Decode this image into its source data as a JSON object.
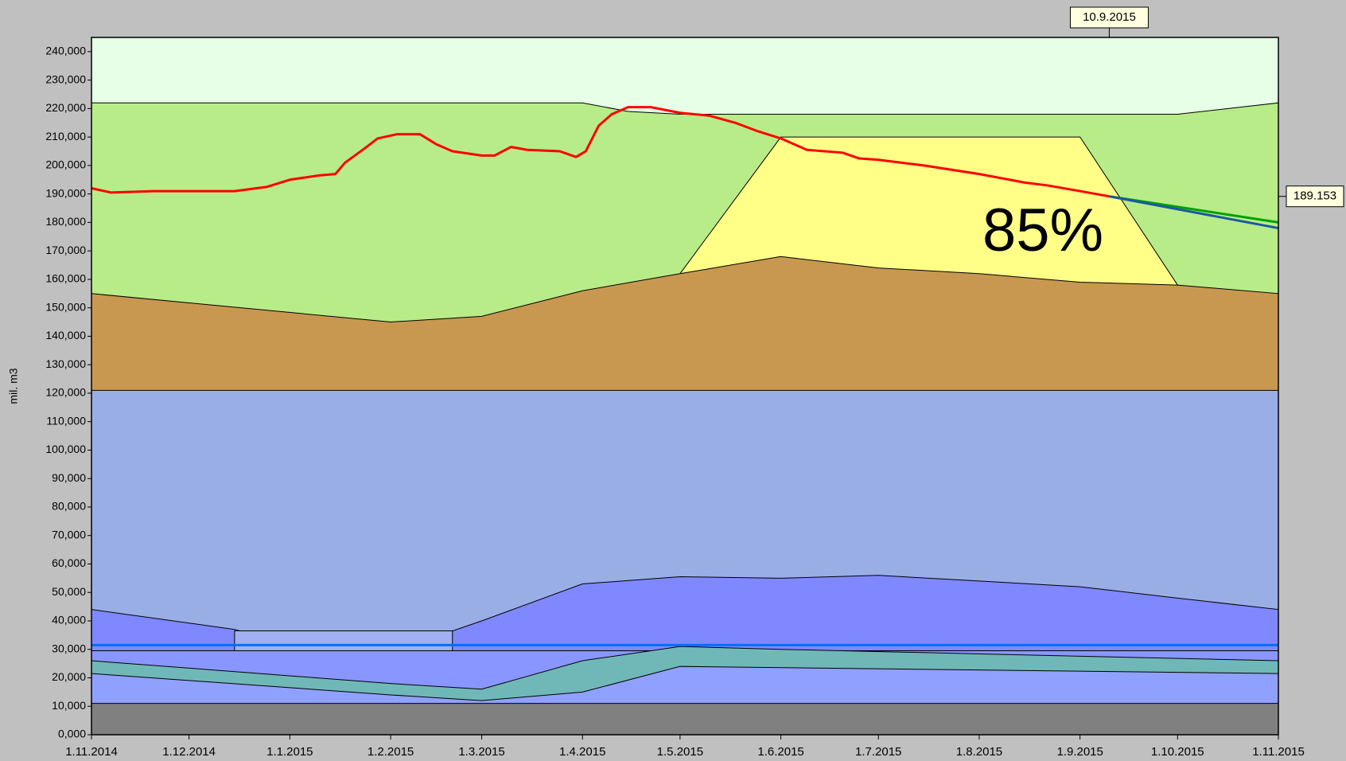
{
  "chart_data": {
    "type": "area",
    "ylabel": "mil. m3",
    "annotation": "85%",
    "plot_color": "#e6ffe6",
    "xlim": [
      "1.11.2014",
      "1.11.2015"
    ],
    "xticks": [
      "1.11.2014",
      "1.12.2014",
      "1.1.2015",
      "1.2.2015",
      "1.3.2015",
      "1.4.2015",
      "1.5.2015",
      "1.6.2015",
      "1.7.2015",
      "1.8.2015",
      "1.9.2015",
      "1.10.2015",
      "1.11.2015"
    ],
    "ylim": [
      0,
      245
    ],
    "yticks": [
      {
        "value": 0,
        "label": "0,000"
      },
      {
        "value": 10,
        "label": "10,000"
      },
      {
        "value": 20,
        "label": "20,000"
      },
      {
        "value": 30,
        "label": "30,000"
      },
      {
        "value": 40,
        "label": "40,000"
      },
      {
        "value": 50,
        "label": "50,000"
      },
      {
        "value": 60,
        "label": "60,000"
      },
      {
        "value": 70,
        "label": "70,000"
      },
      {
        "value": 80,
        "label": "80,000"
      },
      {
        "value": 90,
        "label": "90,000"
      },
      {
        "value": 100,
        "label": "100,000"
      },
      {
        "value": 110,
        "label": "110,000"
      },
      {
        "value": 120,
        "label": "120,000"
      },
      {
        "value": 130,
        "label": "130,000"
      },
      {
        "value": 140,
        "label": "140,000"
      },
      {
        "value": 150,
        "label": "150,000"
      },
      {
        "value": 160,
        "label": "160,000"
      },
      {
        "value": 170,
        "label": "170,000"
      },
      {
        "value": 180,
        "label": "180,000"
      },
      {
        "value": 190,
        "label": "190,000"
      },
      {
        "value": 200,
        "label": "200,000"
      },
      {
        "value": 210,
        "label": "210,000"
      },
      {
        "value": 220,
        "label": "220,000"
      },
      {
        "value": 230,
        "label": "230,000"
      },
      {
        "value": 240,
        "label": "240,000"
      }
    ],
    "areas": [
      {
        "color": "#b8ec88",
        "x": [
          "1.11.2014",
          "1.4.2015",
          "15.4.2015",
          "1.5.2015",
          "1.10.2015",
          "1.11.2015"
        ],
        "values": [
          222,
          222,
          219,
          218,
          218,
          222
        ]
      },
      {
        "color": "#ffff88",
        "x": [
          "1.5.2015",
          "1.6.2015",
          "1.9.2015",
          "1.10.2015"
        ],
        "values": [
          162,
          210,
          210,
          158
        ]
      },
      {
        "color": "#c89850",
        "x": [
          "1.11.2014",
          "1.2.2015",
          "1.3.2015",
          "1.4.2015",
          "1.5.2015",
          "1.6.2015",
          "1.7.2015",
          "1.8.2015",
          "1.9.2015",
          "1.10.2015",
          "1.11.2015"
        ],
        "values": [
          155,
          145,
          147,
          156,
          162,
          168,
          164,
          162,
          159,
          158,
          155
        ]
      },
      {
        "color": "#9aaee6",
        "x": [
          "1.11.2014",
          "1.11.2015"
        ],
        "values": [
          121,
          121
        ]
      },
      {
        "color": "#8088ff",
        "x": [
          "1.11.2014",
          "15.12.2014",
          "1.1.2015",
          "1.2.2015",
          "1.3.2015",
          "1.4.2015",
          "1.5.2015",
          "1.6.2015",
          "1.7.2015",
          "1.8.2015",
          "1.9.2015",
          "1.10.2015",
          "1.11.2015"
        ],
        "values": [
          44,
          37,
          32,
          29,
          40,
          53,
          55.5,
          55,
          56,
          54,
          52,
          48,
          44
        ]
      },
      {
        "color": "#a0b0f0",
        "x": [
          "15.12.2014",
          "20.2.2015"
        ],
        "values": [
          36.5,
          36.5
        ]
      },
      {
        "color": "#8a96ff",
        "x": [
          "1.11.2014",
          "1.11.2015"
        ],
        "values": [
          29.5,
          29.5
        ]
      },
      {
        "color": "#70b8b8",
        "x": [
          "1.11.2014",
          "1.2.2015",
          "1.3.2015",
          "1.4.2015",
          "1.5.2015",
          "1.6.2015",
          "1.11.2015"
        ],
        "values": [
          26,
          18,
          16,
          26,
          31,
          30,
          26
        ]
      },
      {
        "color": "#90a0ff",
        "x": [
          "1.11.2014",
          "1.2.2015",
          "1.3.2015",
          "1.4.2015",
          "1.5.2015",
          "1.11.2015"
        ],
        "values": [
          21.5,
          14,
          12,
          15,
          24,
          21.5
        ]
      },
      {
        "color": "#808080",
        "x": [
          "1.11.2014",
          "1.11.2015"
        ],
        "values": [
          11,
          11
        ]
      }
    ],
    "series": [
      {
        "color": "#0070ff",
        "x": [
          "1.11.2014",
          "1.11.2015"
        ],
        "values": [
          31.5,
          31.5
        ]
      },
      {
        "color": "#00a000",
        "x": [
          "10.9.2015",
          "1.11.2015"
        ],
        "values": [
          189.153,
          180
        ]
      },
      {
        "color": "#1a5aa0",
        "x": [
          "10.9.2015",
          "1.11.2015"
        ],
        "values": [
          189.153,
          178
        ]
      },
      {
        "color": "#ff0000",
        "x": [
          "1.11.2014",
          "7.11.2014",
          "20.11.2014",
          "1.12.2014",
          "15.12.2014",
          "25.12.2014",
          "1.1.2015",
          "10.1.2015",
          "15.1.2015",
          "18.1.2015",
          "24.1.2015",
          "28.1.2015",
          "3.2.2015",
          "10.2.2015",
          "15.2.2015",
          "20.2.2015",
          "1.3.2015",
          "5.3.2015",
          "10.3.2015",
          "15.3.2015",
          "25.3.2015",
          "30.3.2015",
          "2.4.2015",
          "6.4.2015",
          "10.4.2015",
          "15.4.2015",
          "22.4.2015",
          "1.5.2015",
          "10.5.2015",
          "18.5.2015",
          "25.5.2015",
          "1.6.2015",
          "9.6.2015",
          "20.6.2015",
          "25.6.2015",
          "1.7.2015",
          "15.7.2015",
          "1.8.2015",
          "15.8.2015",
          "22.8.2015",
          "1.9.2015",
          "10.9.2015"
        ],
        "values": [
          192,
          190.5,
          191,
          191,
          191,
          192.5,
          195,
          196.5,
          197,
          201,
          206,
          209.5,
          211,
          211,
          207.5,
          205,
          203.5,
          203.5,
          206.5,
          205.5,
          205,
          203,
          205,
          214,
          218,
          220.5,
          220.5,
          218.5,
          217.5,
          215,
          212,
          209.5,
          205.5,
          204.5,
          202.5,
          202,
          200,
          197,
          194,
          193,
          191,
          189.153
        ]
      }
    ],
    "cursor": {
      "x": "10.9.2015",
      "value": 189.153
    }
  }
}
